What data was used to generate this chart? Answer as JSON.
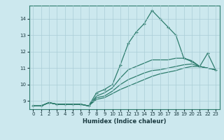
{
  "xlabel": "Humidex (Indice chaleur)",
  "ylabel": "",
  "xlim": [
    -0.5,
    23.5
  ],
  "ylim": [
    8.5,
    14.8
  ],
  "yticks": [
    9,
    10,
    11,
    12,
    13,
    14
  ],
  "xticks": [
    0,
    1,
    2,
    3,
    4,
    5,
    6,
    7,
    8,
    9,
    10,
    11,
    12,
    13,
    14,
    15,
    16,
    17,
    18,
    19,
    20,
    21,
    22,
    23
  ],
  "background_color": "#cce8ee",
  "grid_color": "#aacdd6",
  "line_color": "#2e7d6e",
  "line1": [
    8.7,
    8.7,
    8.9,
    8.8,
    8.8,
    8.8,
    8.8,
    8.7,
    9.5,
    9.7,
    10.0,
    11.2,
    12.5,
    13.2,
    13.7,
    14.5,
    14.0,
    13.5,
    13.0,
    11.6,
    11.4,
    11.1,
    11.9,
    10.9
  ],
  "line2": [
    8.7,
    8.7,
    8.9,
    8.8,
    8.8,
    8.8,
    8.8,
    8.7,
    9.3,
    9.5,
    9.8,
    10.4,
    10.9,
    11.1,
    11.3,
    11.5,
    11.5,
    11.5,
    11.6,
    11.6,
    11.45,
    11.1,
    11.0,
    10.9
  ],
  "line3": [
    8.7,
    8.7,
    8.9,
    8.8,
    8.8,
    8.8,
    8.8,
    8.7,
    9.2,
    9.3,
    9.6,
    10.0,
    10.3,
    10.5,
    10.7,
    10.85,
    10.9,
    11.0,
    11.1,
    11.2,
    11.25,
    11.1,
    11.0,
    10.9
  ],
  "line4": [
    8.7,
    8.7,
    8.9,
    8.8,
    8.8,
    8.8,
    8.8,
    8.7,
    9.1,
    9.2,
    9.45,
    9.7,
    9.9,
    10.1,
    10.3,
    10.5,
    10.65,
    10.75,
    10.85,
    11.0,
    11.1,
    11.1,
    11.0,
    10.9
  ],
  "xlabel_fontsize": 6.0,
  "tick_fontsize": 5.0
}
